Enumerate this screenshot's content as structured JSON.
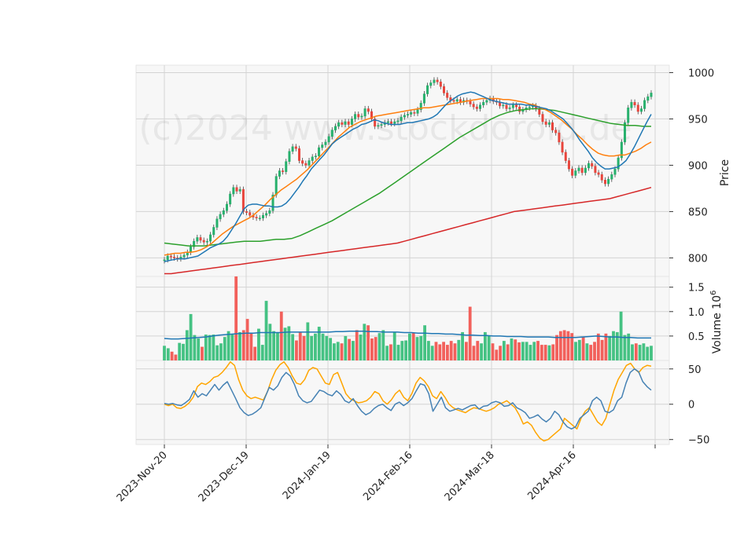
{
  "watermark": "(c)2024 www.stockdoroid.de",
  "chart_data": [
    {
      "type": "candlestick",
      "panel": "price",
      "ylabel": "Price",
      "ylim": [
        780,
        1008
      ],
      "yticks": [
        800,
        850,
        900,
        950,
        1000
      ],
      "grid": true,
      "colors": {
        "up": "#26b06c",
        "down": "#e8453c",
        "ma_blue": "#1f77b4",
        "ma_orange": "#ff7f0e",
        "ma_green": "#2ca02c",
        "ma_red": "#d62728"
      },
      "close": [
        798,
        802,
        801,
        800,
        799,
        801,
        803,
        806,
        812,
        818,
        822,
        819,
        817,
        818,
        825,
        833,
        842,
        847,
        851,
        858,
        869,
        876,
        872,
        874,
        850,
        849,
        846,
        844,
        843,
        843,
        846,
        848,
        851,
        868,
        888,
        894,
        893,
        904,
        915,
        920,
        918,
        905,
        902,
        900,
        905,
        909,
        910,
        919,
        922,
        925,
        931,
        938,
        942,
        946,
        944,
        947,
        944,
        950,
        955,
        952,
        953,
        961,
        958,
        950,
        942,
        943,
        944,
        946,
        947,
        945,
        947,
        948,
        952,
        954,
        955,
        957,
        956,
        960,
        967,
        977,
        986,
        989,
        992,
        990,
        985,
        978,
        973,
        970,
        969,
        971,
        968,
        970,
        969,
        966,
        963,
        961,
        965,
        968,
        970,
        972,
        969,
        968,
        964,
        965,
        961,
        962,
        965,
        963,
        958,
        960,
        962,
        963,
        964,
        961,
        955,
        947,
        944,
        946,
        938,
        935,
        925,
        914,
        905,
        896,
        889,
        894,
        897,
        892,
        897,
        902,
        899,
        892,
        890,
        884,
        880,
        885,
        890,
        896,
        908,
        925,
        946,
        962,
        968,
        965,
        958,
        961,
        970,
        974,
        978
      ],
      "ma_blue": [
        796,
        797,
        798,
        799,
        799,
        799,
        800,
        801,
        802,
        805,
        808,
        811,
        813,
        815,
        818,
        823,
        830,
        837,
        845,
        853,
        857,
        858,
        858,
        857,
        856,
        856,
        855,
        855,
        856,
        859,
        864,
        870,
        876,
        883,
        889,
        896,
        901,
        906,
        911,
        917,
        923,
        927,
        930,
        933,
        936,
        939,
        941,
        944,
        945,
        947,
        949,
        948,
        946,
        945,
        944,
        944,
        944,
        945,
        946,
        946,
        947,
        948,
        949,
        950,
        952,
        955,
        960,
        965,
        969,
        972,
        975,
        977,
        978,
        979,
        978,
        976,
        974,
        972,
        970,
        969,
        968,
        967,
        966,
        966,
        966,
        966,
        965,
        965,
        964,
        963,
        962,
        961,
        959,
        956,
        953,
        950,
        945,
        940,
        934,
        927,
        921,
        915,
        908,
        903,
        899,
        896,
        896,
        897,
        898,
        901,
        905,
        912,
        920,
        929,
        938,
        947,
        955
      ],
      "ma_orange": [
        803,
        804,
        805,
        805,
        806,
        806,
        807,
        809,
        812,
        816,
        821,
        826,
        830,
        834,
        837,
        840,
        843,
        847,
        852,
        857,
        863,
        868,
        873,
        877,
        881,
        885,
        890,
        895,
        901,
        907,
        913,
        919,
        925,
        931,
        936,
        941,
        944,
        947,
        949,
        951,
        953,
        954,
        955,
        956,
        957,
        958,
        959,
        960,
        961,
        962,
        962,
        963,
        964,
        965,
        966,
        967,
        968,
        969,
        970,
        971,
        972,
        972,
        972,
        972,
        971,
        971,
        970,
        969,
        968,
        966,
        965,
        962,
        960,
        957,
        953,
        949,
        944,
        939,
        933,
        928,
        922,
        917,
        913,
        911,
        910,
        910,
        911,
        911,
        913,
        915,
        918,
        922,
        925
      ],
      "ma_green": [
        816,
        815,
        814,
        813,
        813,
        813,
        814,
        815,
        816,
        817,
        818,
        818,
        818,
        819,
        820,
        820,
        821,
        824,
        828,
        832,
        836,
        840,
        845,
        850,
        855,
        860,
        865,
        870,
        876,
        882,
        888,
        894,
        900,
        906,
        912,
        918,
        924,
        930,
        935,
        940,
        945,
        950,
        954,
        957,
        959,
        960,
        961,
        961,
        960,
        959,
        957,
        955,
        953,
        951,
        949,
        947,
        945,
        944,
        943,
        943,
        942,
        942
      ],
      "ma_red": [
        783,
        783,
        784,
        785,
        786,
        787,
        788,
        789,
        790,
        791,
        792,
        793,
        794,
        795,
        796,
        797,
        798,
        799,
        800,
        801,
        802,
        803,
        804,
        805,
        806,
        807,
        808,
        809,
        810,
        811,
        812,
        813,
        814,
        815,
        816,
        818,
        820,
        822,
        824,
        826,
        828,
        830,
        832,
        834,
        836,
        838,
        840,
        842,
        844,
        846,
        848,
        850,
        851,
        852,
        853,
        854,
        855,
        856,
        857,
        858,
        859,
        860,
        861,
        862,
        863,
        864,
        866,
        868,
        870,
        872,
        874,
        876
      ]
    },
    {
      "type": "bar",
      "panel": "volume",
      "ylabel": "Volume  10^6",
      "ylim": [
        0,
        1.72
      ],
      "yticks": [
        0.5,
        1.0,
        1.5
      ],
      "ytick_labels": [
        "0.5",
        "1.0",
        "1.5"
      ],
      "volume": [
        0.3,
        0.25,
        0.18,
        0.12,
        0.36,
        0.34,
        0.62,
        0.95,
        0.52,
        0.45,
        0.28,
        0.53,
        0.52,
        0.53,
        0.31,
        0.35,
        0.48,
        0.6,
        0.53,
        1.72,
        0.58,
        0.62,
        0.85,
        0.55,
        0.28,
        0.65,
        0.32,
        1.22,
        0.75,
        0.6,
        0.57,
        1.0,
        0.67,
        0.7,
        0.54,
        0.41,
        0.57,
        0.5,
        0.78,
        0.5,
        0.55,
        0.69,
        0.55,
        0.5,
        0.46,
        0.35,
        0.38,
        0.35,
        0.5,
        0.44,
        0.4,
        0.62,
        0.53,
        0.75,
        0.72,
        0.45,
        0.48,
        0.56,
        0.62,
        0.3,
        0.33,
        0.58,
        0.32,
        0.4,
        0.41,
        0.55,
        0.56,
        0.48,
        0.5,
        0.72,
        0.4,
        0.3,
        0.38,
        0.33,
        0.38,
        0.32,
        0.4,
        0.35,
        0.42,
        0.58,
        0.38,
        1.1,
        0.3,
        0.4,
        0.35,
        0.58,
        0.5,
        0.35,
        0.22,
        0.3,
        0.4,
        0.33,
        0.45,
        0.43,
        0.37,
        0.38,
        0.38,
        0.32,
        0.38,
        0.4,
        0.32,
        0.32,
        0.31,
        0.33,
        0.52,
        0.6,
        0.62,
        0.6,
        0.56,
        0.38,
        0.42,
        0.48,
        0.35,
        0.32,
        0.38,
        0.55,
        0.42,
        0.55,
        0.5,
        0.6,
        0.58,
        1.0,
        0.52,
        0.55,
        0.33,
        0.35,
        0.32,
        0.35,
        0.28,
        0.3
      ],
      "ma_volume": [
        0.45,
        0.44,
        0.44,
        0.45,
        0.46,
        0.47,
        0.48,
        0.5,
        0.52,
        0.53,
        0.54,
        0.55,
        0.56,
        0.56,
        0.57,
        0.57,
        0.57,
        0.57,
        0.58,
        0.58,
        0.58,
        0.58,
        0.58,
        0.58,
        0.58,
        0.59,
        0.59,
        0.6,
        0.6,
        0.6,
        0.59,
        0.59,
        0.58,
        0.58,
        0.58,
        0.57,
        0.57,
        0.56,
        0.56,
        0.55,
        0.55,
        0.54,
        0.54,
        0.53,
        0.52,
        0.52,
        0.51,
        0.51,
        0.5,
        0.5,
        0.49,
        0.49,
        0.49,
        0.48,
        0.48,
        0.48,
        0.48,
        0.47,
        0.47,
        0.47,
        0.47,
        0.48,
        0.49,
        0.5,
        0.49,
        0.48,
        0.48,
        0.47,
        0.47,
        0.46,
        0.46,
        0.46
      ]
    },
    {
      "type": "line",
      "panel": "oscillator",
      "ylim": [
        -57,
        62
      ],
      "yticks": [
        -50,
        0,
        50
      ],
      "ytick_labels": [
        "−50",
        "0",
        "50"
      ],
      "colors": {
        "blue": "#4682b4",
        "orange": "#ffa500"
      },
      "blue": [
        1,
        0,
        1,
        -1,
        -2,
        2,
        7,
        19,
        10,
        15,
        12,
        20,
        28,
        20,
        27,
        32,
        20,
        8,
        -5,
        -12,
        -16,
        -14,
        -10,
        -5,
        10,
        24,
        20,
        26,
        38,
        45,
        40,
        28,
        12,
        5,
        2,
        4,
        12,
        20,
        18,
        14,
        12,
        19,
        14,
        5,
        2,
        8,
        -2,
        -10,
        -15,
        -12,
        -6,
        -2,
        0,
        -5,
        -9,
        0,
        3,
        -2,
        2,
        8,
        19,
        29,
        27,
        15,
        -10,
        0,
        10,
        -5,
        -10,
        -8,
        -6,
        -8,
        -5,
        -2,
        -1,
        -7,
        -3,
        -2,
        2,
        4,
        2,
        -3,
        -2,
        2,
        -5,
        -8,
        -12,
        -20,
        -18,
        -15,
        -21,
        -25,
        -20,
        -10,
        -15,
        -25,
        -32,
        -35,
        -32,
        -20,
        -15,
        -10,
        5,
        10,
        5,
        -10,
        -12,
        -8,
        5,
        10,
        30,
        45,
        50,
        46,
        32,
        25,
        20
      ],
      "orange": [
        0,
        -2,
        0,
        -5,
        -6,
        -3,
        2,
        10,
        25,
        30,
        28,
        32,
        38,
        40,
        45,
        52,
        60,
        55,
        35,
        20,
        12,
        8,
        10,
        8,
        6,
        18,
        35,
        48,
        56,
        60,
        52,
        40,
        30,
        28,
        35,
        48,
        52,
        50,
        40,
        30,
        28,
        42,
        45,
        30,
        15,
        8,
        5,
        2,
        3,
        5,
        10,
        18,
        15,
        5,
        0,
        6,
        15,
        20,
        10,
        5,
        15,
        30,
        38,
        33,
        25,
        12,
        8,
        18,
        10,
        0,
        -5,
        -8,
        -10,
        -12,
        -8,
        -5,
        -6,
        -8,
        -10,
        -8,
        -5,
        0,
        2,
        5,
        0,
        -5,
        -15,
        -28,
        -25,
        -30,
        -40,
        -48,
        -52,
        -50,
        -45,
        -40,
        -35,
        -20,
        -25,
        -30,
        -35,
        -20,
        -10,
        -5,
        -15,
        -25,
        -30,
        -20,
        0,
        20,
        35,
        45,
        55,
        58,
        50,
        45,
        52,
        55,
        54
      ]
    },
    {
      "type": "axis",
      "panel": "x",
      "xtick_labels": [
        "2023-Nov-20",
        "2023-Dec-19",
        "2024-Jan-19",
        "2024-Feb-16",
        "2024-Mar-18",
        "2024-Apr-16"
      ]
    }
  ]
}
